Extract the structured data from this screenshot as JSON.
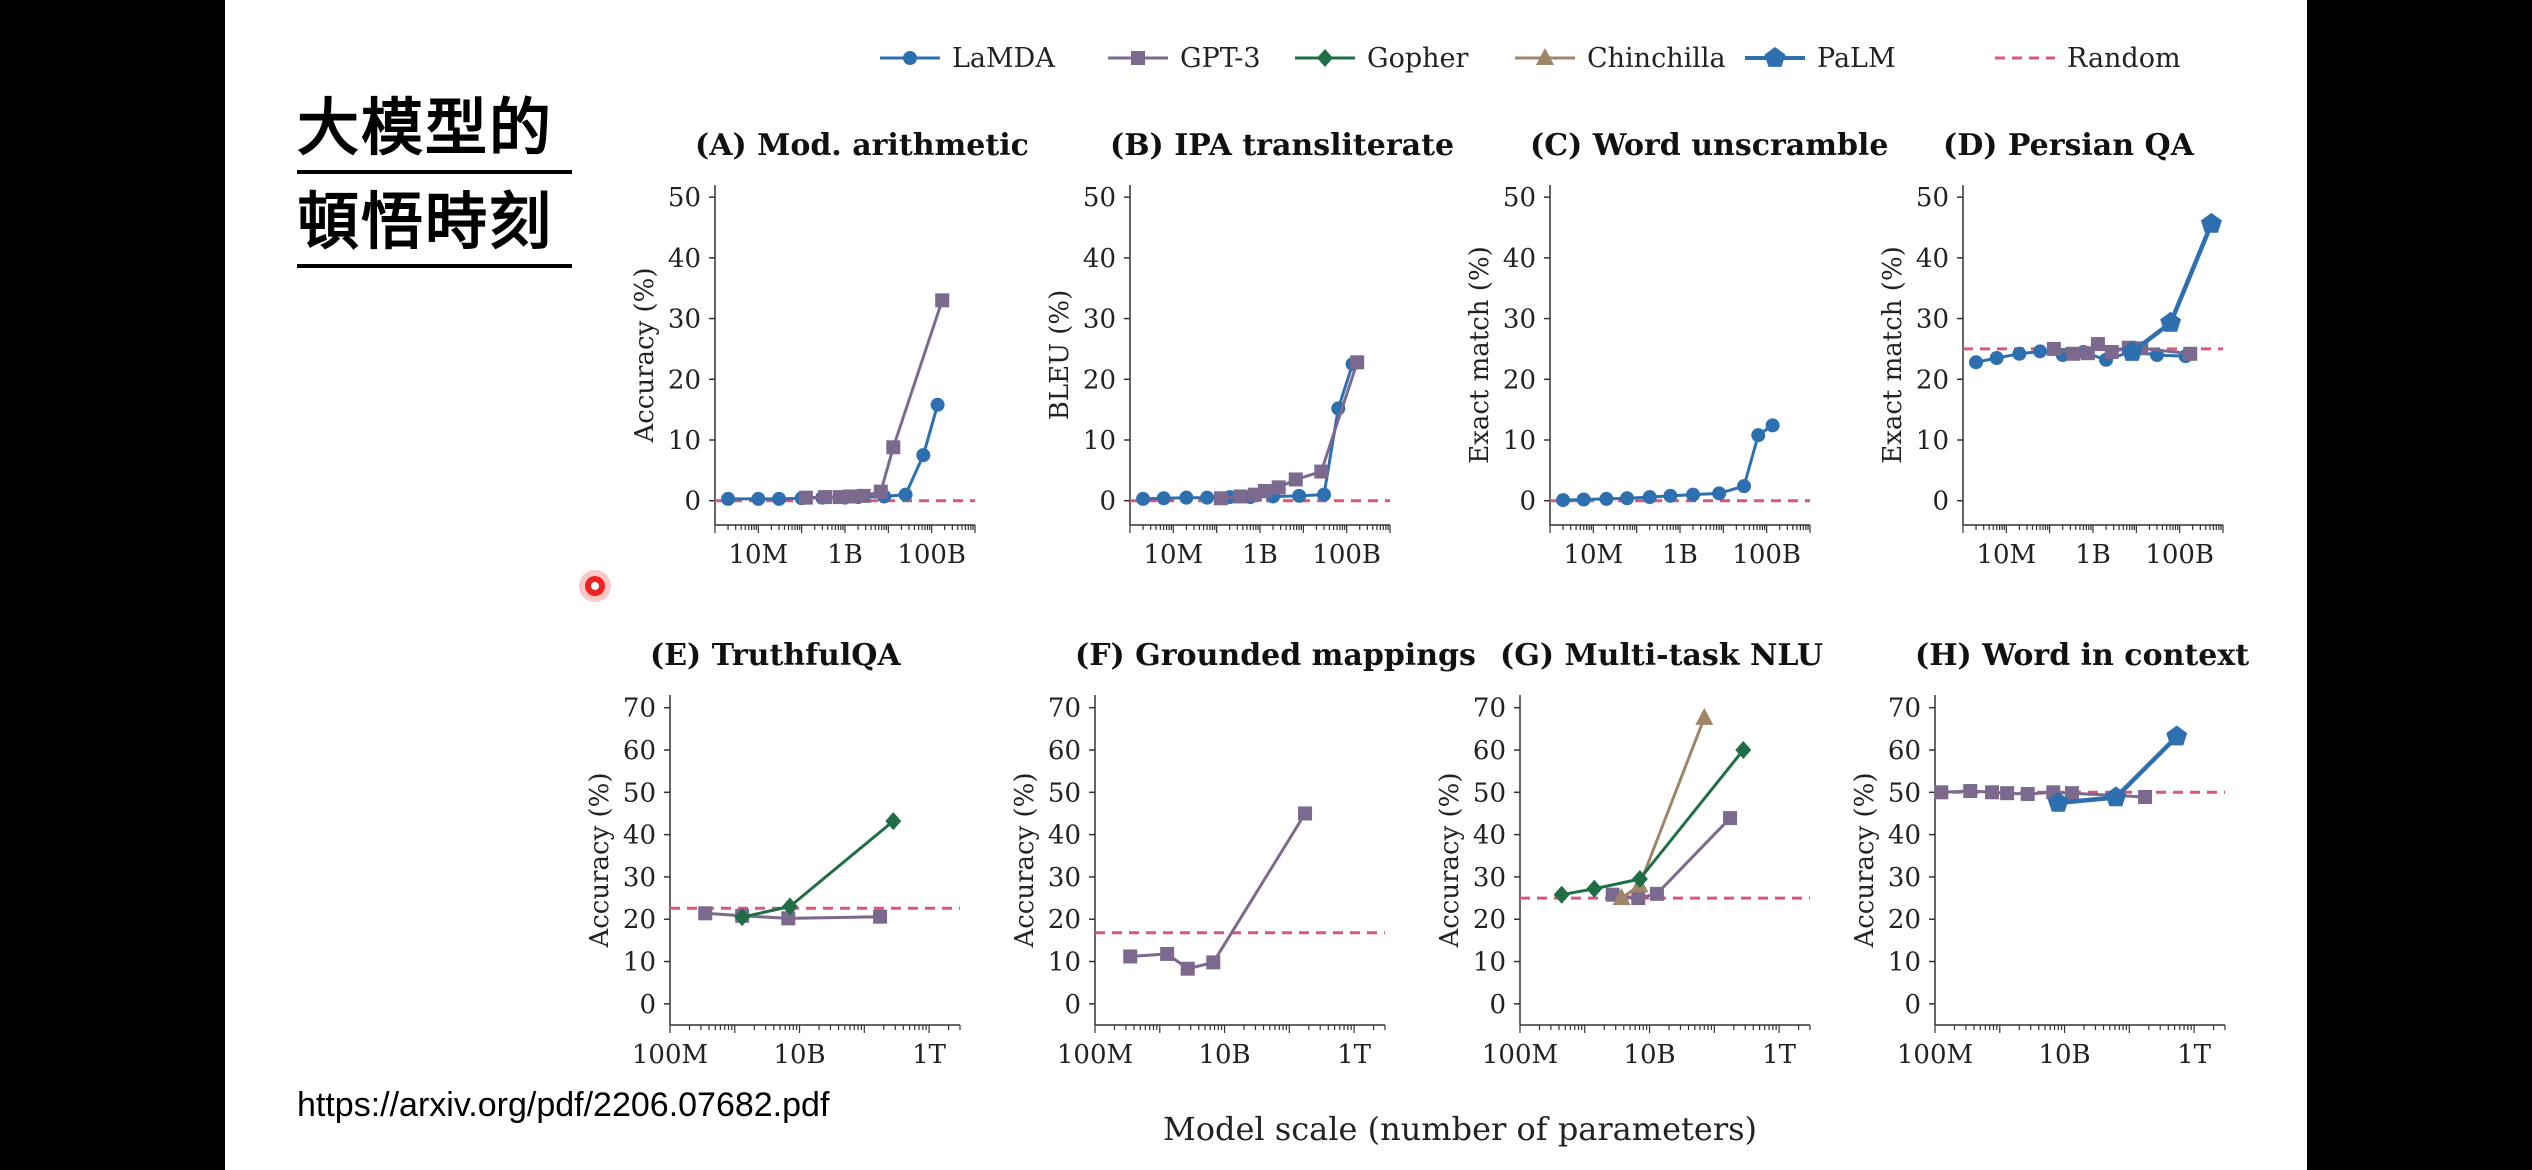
{
  "slide": {
    "title_line1": "大模型的",
    "title_line2": "頓悟時刻",
    "source": "https://arxiv.org/pdf/2206.07682.pdf",
    "common_xlabel": "Model scale (number of parameters)"
  },
  "legend": [
    {
      "name": "LaMDA",
      "color": "#2e6fb0",
      "marker": "circle",
      "dash": false
    },
    {
      "name": "GPT-3",
      "color": "#7c6a8e",
      "marker": "square",
      "dash": false
    },
    {
      "name": "Gopher",
      "color": "#1f6e45",
      "marker": "diamond",
      "dash": false
    },
    {
      "name": "Chinchilla",
      "color": "#a08668",
      "marker": "triangle",
      "dash": false
    },
    {
      "name": "PaLM",
      "color": "#2e6fb0",
      "marker": "pentagon",
      "dash": false
    },
    {
      "name": "Random",
      "color": "#d9577a",
      "marker": "none",
      "dash": true
    }
  ],
  "chart_data": [
    {
      "id": "A",
      "type": "line",
      "title": "(A) Mod. arithmetic",
      "ylabel": "Accuracy (%)",
      "xlim": [
        1000000.0,
        1000000000000.0
      ],
      "ylim": [
        -4,
        52
      ],
      "yticks": [
        0,
        10,
        20,
        30,
        40,
        50
      ],
      "xticks": [
        {
          "v": 10000000.0,
          "label": "10M"
        },
        {
          "v": 1000000000.0,
          "label": "1B"
        },
        {
          "v": 100000000000.0,
          "label": "100B"
        }
      ],
      "random": 0,
      "series": [
        {
          "name": "LaMDA",
          "x": [
            2000000.0,
            10000000.0,
            30000000.0,
            100000000.0,
            300000000.0,
            1000000000.0,
            2000000000.0,
            8000000000.0,
            25000000000.0,
            64000000000.0,
            137000000000.0
          ],
          "y": [
            0.3,
            0.3,
            0.3,
            0.4,
            0.5,
            0.5,
            0.6,
            0.7,
            1.0,
            7.5,
            15.8
          ]
        },
        {
          "name": "GPT-3",
          "x": [
            125000000.0,
            350000000.0,
            760000000.0,
            1300000000.0,
            2700000000.0,
            6700000000.0,
            13000000000.0,
            175000000000.0
          ],
          "y": [
            0.5,
            0.6,
            0.6,
            0.7,
            0.8,
            1.5,
            8.8,
            33
          ]
        }
      ]
    },
    {
      "id": "B",
      "type": "line",
      "title": "(B) IPA transliterate",
      "ylabel": "BLEU (%)",
      "xlim": [
        1000000.0,
        1000000000000.0
      ],
      "ylim": [
        -4,
        52
      ],
      "yticks": [
        0,
        10,
        20,
        30,
        40,
        50
      ],
      "xticks": [
        {
          "v": 10000000.0,
          "label": "10M"
        },
        {
          "v": 1000000000.0,
          "label": "1B"
        },
        {
          "v": 100000000000.0,
          "label": "100B"
        }
      ],
      "random": 0,
      "series": [
        {
          "name": "LaMDA",
          "x": [
            2000000.0,
            6000000.0,
            20000000.0,
            60000000.0,
            200000000.0,
            600000000.0,
            2000000000.0,
            8000000000.0,
            30000000000.0,
            64000000000.0,
            137000000000.0
          ],
          "y": [
            0.3,
            0.4,
            0.5,
            0.5,
            0.6,
            0.6,
            0.7,
            0.8,
            1.0,
            15.2,
            22.5
          ]
        },
        {
          "name": "GPT-3",
          "x": [
            125000000.0,
            350000000.0,
            760000000.0,
            1300000000.0,
            2700000000.0,
            6700000000.0,
            26000000000.0,
            175000000000.0
          ],
          "y": [
            0.4,
            0.7,
            1.0,
            1.6,
            2.2,
            3.5,
            4.8,
            22.8
          ]
        }
      ]
    },
    {
      "id": "C",
      "type": "line",
      "title": "(C) Word unscramble",
      "ylabel": "Exact match (%)",
      "xlim": [
        1000000.0,
        1000000000000.0
      ],
      "ylim": [
        -4,
        52
      ],
      "yticks": [
        0,
        10,
        20,
        30,
        40,
        50
      ],
      "xticks": [
        {
          "v": 10000000.0,
          "label": "10M"
        },
        {
          "v": 1000000000.0,
          "label": "1B"
        },
        {
          "v": 100000000000.0,
          "label": "100B"
        }
      ],
      "random": 0,
      "series": [
        {
          "name": "LaMDA",
          "x": [
            2000000.0,
            6000000.0,
            20000000.0,
            60000000.0,
            200000000.0,
            600000000.0,
            2000000000.0,
            8000000000.0,
            30000000000.0,
            64000000000.0,
            137000000000.0
          ],
          "y": [
            0.1,
            0.2,
            0.3,
            0.4,
            0.6,
            0.8,
            1.0,
            1.2,
            2.4,
            10.8,
            12.4
          ]
        }
      ]
    },
    {
      "id": "D",
      "type": "line",
      "title": "(D) Persian QA",
      "ylabel": "Exact match (%)",
      "xlim": [
        1000000.0,
        1000000000000.0
      ],
      "ylim": [
        -4,
        52
      ],
      "yticks": [
        0,
        10,
        20,
        30,
        40,
        50
      ],
      "xticks": [
        {
          "v": 10000000.0,
          "label": "10M"
        },
        {
          "v": 1000000000.0,
          "label": "1B"
        },
        {
          "v": 100000000000.0,
          "label": "100B"
        }
      ],
      "random": 25,
      "series": [
        {
          "name": "LaMDA",
          "x": [
            2000000.0,
            6000000.0,
            20000000.0,
            60000000.0,
            200000000.0,
            600000000.0,
            2000000000.0,
            8000000000.0,
            30000000000.0,
            137000000000.0
          ],
          "y": [
            22.8,
            23.5,
            24.2,
            24.6,
            24.0,
            24.5,
            23.2,
            24.6,
            24.0,
            23.8
          ]
        },
        {
          "name": "GPT-3",
          "x": [
            125000000.0,
            350000000.0,
            760000000.0,
            1300000000.0,
            2700000000.0,
            6700000000.0,
            13000000000.0,
            175000000000.0
          ],
          "y": [
            25.0,
            24.2,
            24.3,
            25.8,
            24.5,
            25.2,
            25.1,
            24.2
          ]
        },
        {
          "name": "PaLM",
          "x": [
            8000000000.0,
            62000000000.0,
            540000000000.0
          ],
          "y": [
            24.5,
            29.3,
            45.6
          ]
        }
      ]
    },
    {
      "id": "E",
      "type": "line",
      "title": "(E) TruthfulQA",
      "ylabel": "Accuracy (%)",
      "xlim": [
        100000000.0,
        3000000000000.0
      ],
      "ylim": [
        -5,
        73
      ],
      "yticks": [
        0,
        10,
        20,
        30,
        40,
        50,
        60,
        70
      ],
      "xticks": [
        {
          "v": 100000000.0,
          "label": "100M"
        },
        {
          "v": 10000000000.0,
          "label": "10B"
        },
        {
          "v": 1000000000000.0,
          "label": "1T"
        }
      ],
      "random": 22.6,
      "series": [
        {
          "name": "GPT-3",
          "x": [
            350000000.0,
            1300000000.0,
            6700000000.0,
            175000000000.0
          ],
          "y": [
            21.4,
            20.8,
            20.2,
            20.6
          ]
        },
        {
          "name": "Gopher",
          "x": [
            1300000000.0,
            7100000000.0,
            280000000000.0
          ],
          "y": [
            20.5,
            23.0,
            43.2
          ]
        }
      ]
    },
    {
      "id": "F",
      "type": "line",
      "title": "(F) Grounded mappings",
      "ylabel": "Accuracy (%)",
      "xlim": [
        100000000.0,
        3000000000000.0
      ],
      "ylim": [
        -5,
        73
      ],
      "yticks": [
        0,
        10,
        20,
        30,
        40,
        50,
        60,
        70
      ],
      "xticks": [
        {
          "v": 100000000.0,
          "label": "100M"
        },
        {
          "v": 10000000000.0,
          "label": "10B"
        },
        {
          "v": 1000000000000.0,
          "label": "1T"
        }
      ],
      "random": 16.8,
      "series": [
        {
          "name": "GPT-3",
          "x": [
            350000000.0,
            1300000000.0,
            2700000000.0,
            6700000000.0,
            175000000000.0
          ],
          "y": [
            11.2,
            11.8,
            8.3,
            9.8,
            45.0
          ]
        }
      ]
    },
    {
      "id": "G",
      "type": "line",
      "title": "(G) Multi-task NLU",
      "ylabel": "Accuracy (%)",
      "xlim": [
        100000000.0,
        3000000000000.0
      ],
      "ylim": [
        -5,
        73
      ],
      "yticks": [
        0,
        10,
        20,
        30,
        40,
        50,
        60,
        70
      ],
      "xticks": [
        {
          "v": 100000000.0,
          "label": "100M"
        },
        {
          "v": 10000000000.0,
          "label": "10B"
        },
        {
          "v": 1000000000000.0,
          "label": "1T"
        }
      ],
      "random": 25,
      "series": [
        {
          "name": "GPT-3",
          "x": [
            2700000000.0,
            6700000000.0,
            13000000000.0,
            175000000000.0
          ],
          "y": [
            25.8,
            25.0,
            26.0,
            43.9
          ]
        },
        {
          "name": "Chinchilla",
          "x": [
            3700000000.0,
            7000000000.0,
            70000000000.0
          ],
          "y": [
            25.0,
            28.0,
            67.6
          ]
        },
        {
          "name": "Gopher",
          "x": [
            440000000.0,
            1400000000.0,
            7100000000.0,
            280000000000.0
          ],
          "y": [
            25.8,
            27.2,
            29.5,
            60.0
          ]
        }
      ]
    },
    {
      "id": "H",
      "type": "line",
      "title": "(H) Word in context",
      "ylabel": "Accuracy (%)",
      "xlim": [
        100000000.0,
        3000000000000.0
      ],
      "ylim": [
        -5,
        73
      ],
      "yticks": [
        0,
        10,
        20,
        30,
        40,
        50,
        60,
        70
      ],
      "xticks": [
        {
          "v": 100000000.0,
          "label": "100M"
        },
        {
          "v": 10000000000.0,
          "label": "10B"
        },
        {
          "v": 1000000000000.0,
          "label": "1T"
        }
      ],
      "random": 50,
      "series": [
        {
          "name": "GPT-3",
          "x": [
            125000000.0,
            350000000.0,
            760000000.0,
            1300000000.0,
            2700000000.0,
            6700000000.0,
            13000000000.0,
            175000000000.0
          ],
          "y": [
            50.0,
            50.3,
            50.0,
            49.8,
            49.6,
            50.0,
            49.8,
            48.9
          ]
        },
        {
          "name": "PaLM",
          "x": [
            8000000000.0,
            62000000000.0,
            540000000000.0
          ],
          "y": [
            47.5,
            48.8,
            63.2
          ]
        }
      ]
    }
  ]
}
